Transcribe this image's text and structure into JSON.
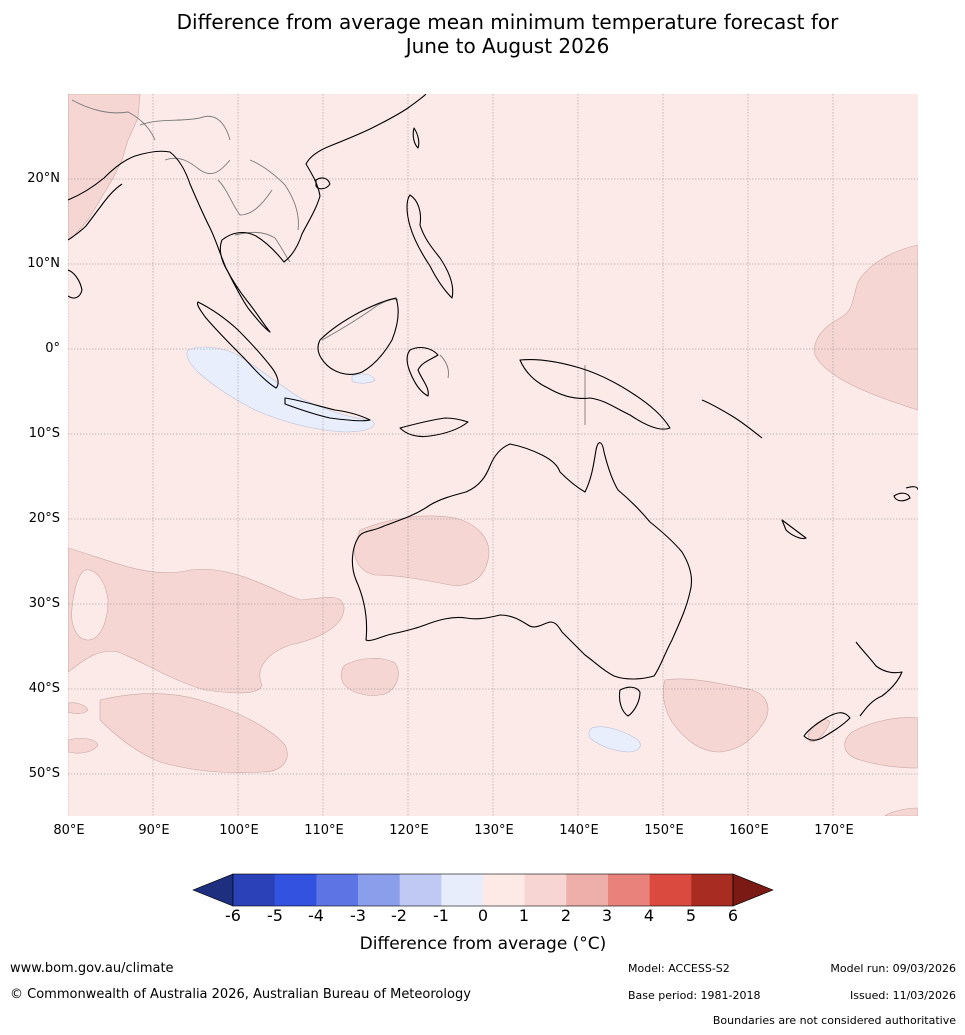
{
  "title": {
    "line1": "Difference from average mean minimum temperature forecast for",
    "line2": "June to August 2026"
  },
  "map": {
    "latitude_labels": [
      "20°N",
      "10°N",
      "0°",
      "10°S",
      "20°S",
      "30°S",
      "40°S",
      "50°S"
    ],
    "longitude_labels": [
      "80°E",
      "90°E",
      "100°E",
      "110°E",
      "120°E",
      "130°E",
      "140°E",
      "150°E",
      "160°E",
      "170°E"
    ],
    "background_fill": "#fceae8",
    "warm_anomaly_fill": "#f6d6d3",
    "cool_anomaly_fill": "#e8eefc",
    "coastline_color": "#000000",
    "border_color": "#7a7a7a",
    "grid_color": "#8a8a8a"
  },
  "colorbar": {
    "ticks": [
      "-6",
      "-5",
      "-4",
      "-3",
      "-2",
      "-1",
      "0",
      "1",
      "2",
      "3",
      "4",
      "5",
      "6"
    ],
    "colors": [
      "#1f2f80",
      "#2a41b8",
      "#3352e0",
      "#5c74e4",
      "#8a9eec",
      "#c0c9f4",
      "#e8edfb",
      "#fde9e6",
      "#f6d5d2",
      "#eeaea9",
      "#e8827b",
      "#db4a3e",
      "#a82c22",
      "#7b1a15"
    ],
    "label": "Difference from average (°C)"
  },
  "footer": {
    "website": "www.bom.gov.au/climate",
    "copyright": "© Commonwealth of Australia 2026, Australian Bureau of Meteorology",
    "model": "Model: ACCESS-S2",
    "base_period": "Base period: 1981-2018",
    "model_run": "Model run: 09/03/2026",
    "issued": "Issued: 11/03/2026",
    "disclaimer": "Boundaries are not considered authoritative"
  }
}
